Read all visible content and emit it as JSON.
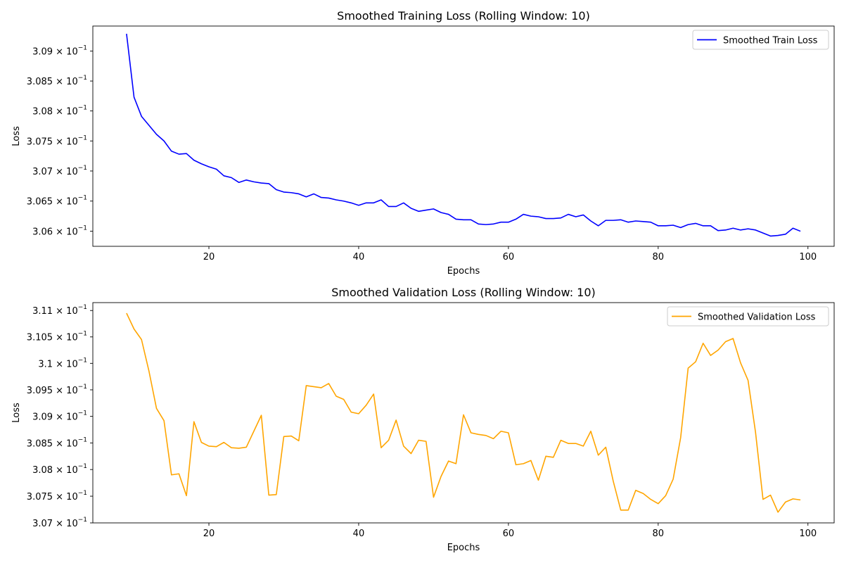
{
  "chart_data": [
    {
      "type": "line",
      "title": "Smoothed Training Loss (Rolling Window: 10)",
      "xlabel": "Epochs",
      "ylabel": "Loss",
      "yscale": "log",
      "xlim": [
        4.5,
        103.5
      ],
      "ylim": [
        0.30575,
        0.30942
      ],
      "x_ticks": [
        20,
        40,
        60,
        80,
        100
      ],
      "y_ticks": [
        0.306,
        0.3065,
        0.307,
        0.3075,
        0.308,
        0.3085,
        0.309
      ],
      "y_tick_mantissas": [
        "3.06",
        "3.065",
        "3.07",
        "3.075",
        "3.08",
        "3.085",
        "3.09"
      ],
      "y_tick_exponent": "−1",
      "grid": false,
      "legend_position": "top-right",
      "series": [
        {
          "name": "Smoothed Train Loss",
          "color": "#0000ff",
          "x": [
            9,
            10,
            11,
            12,
            13,
            14,
            15,
            16,
            17,
            18,
            19,
            20,
            21,
            22,
            23,
            24,
            25,
            26,
            27,
            28,
            29,
            30,
            31,
            32,
            33,
            34,
            35,
            36,
            37,
            38,
            39,
            40,
            41,
            42,
            43,
            44,
            45,
            46,
            47,
            48,
            49,
            50,
            51,
            52,
            53,
            54,
            55,
            56,
            57,
            58,
            59,
            60,
            61,
            62,
            63,
            64,
            65,
            66,
            67,
            68,
            69,
            70,
            71,
            72,
            73,
            74,
            75,
            76,
            77,
            78,
            79,
            80,
            81,
            82,
            83,
            84,
            85,
            86,
            87,
            88,
            89,
            90,
            91,
            92,
            93,
            94,
            95,
            96,
            97,
            98,
            99
          ],
          "values": [
            0.30929,
            0.30823,
            0.30791,
            0.30776,
            0.30761,
            0.3075,
            0.30733,
            0.30728,
            0.30729,
            0.30718,
            0.30712,
            0.30707,
            0.30703,
            0.30692,
            0.30689,
            0.30681,
            0.30685,
            0.30682,
            0.3068,
            0.30679,
            0.30669,
            0.30665,
            0.30664,
            0.30662,
            0.30657,
            0.30662,
            0.30656,
            0.30655,
            0.30652,
            0.3065,
            0.30647,
            0.30643,
            0.30647,
            0.30647,
            0.30652,
            0.30641,
            0.30641,
            0.30647,
            0.30638,
            0.30633,
            0.30635,
            0.30637,
            0.30631,
            0.30628,
            0.3062,
            0.30619,
            0.30619,
            0.30612,
            0.30611,
            0.30612,
            0.30615,
            0.30615,
            0.3062,
            0.30628,
            0.30625,
            0.30624,
            0.30621,
            0.30621,
            0.30622,
            0.30628,
            0.30624,
            0.30627,
            0.30617,
            0.30609,
            0.30618,
            0.30618,
            0.30619,
            0.30615,
            0.30617,
            0.30616,
            0.30615,
            0.30609,
            0.30609,
            0.3061,
            0.30606,
            0.30611,
            0.30613,
            0.30609,
            0.30609,
            0.30601,
            0.30602,
            0.30605,
            0.30602,
            0.30604,
            0.30602,
            0.30597,
            0.30592,
            0.30593,
            0.30595,
            0.30605,
            0.306
          ]
        }
      ]
    },
    {
      "type": "line",
      "title": "Smoothed Validation Loss (Rolling Window: 10)",
      "xlabel": "Epochs",
      "ylabel": "Loss",
      "yscale": "log",
      "xlim": [
        4.5,
        103.5
      ],
      "ylim": [
        0.307,
        0.31115
      ],
      "x_ticks": [
        20,
        40,
        60,
        80,
        100
      ],
      "y_ticks": [
        0.307,
        0.3075,
        0.308,
        0.3085,
        0.309,
        0.3095,
        0.31,
        0.3105,
        0.311
      ],
      "y_tick_mantissas": [
        "3.07",
        "3.075",
        "3.08",
        "3.085",
        "3.09",
        "3.095",
        "3.1",
        "3.105",
        "3.11"
      ],
      "y_tick_exponent": "−1",
      "grid": false,
      "legend_position": "top-right",
      "series": [
        {
          "name": "Smoothed Validation Loss",
          "color": "#ffa500",
          "x": [
            9,
            10,
            11,
            12,
            13,
            14,
            15,
            16,
            17,
            18,
            19,
            20,
            21,
            22,
            23,
            24,
            25,
            26,
            27,
            28,
            29,
            30,
            31,
            32,
            33,
            34,
            35,
            36,
            37,
            38,
            39,
            40,
            41,
            42,
            43,
            44,
            45,
            46,
            47,
            48,
            49,
            50,
            51,
            52,
            53,
            54,
            55,
            56,
            57,
            58,
            59,
            60,
            61,
            62,
            63,
            64,
            65,
            66,
            67,
            68,
            69,
            70,
            71,
            72,
            73,
            74,
            75,
            76,
            77,
            78,
            79,
            80,
            81,
            82,
            83,
            84,
            85,
            86,
            87,
            88,
            89,
            90,
            91,
            92,
            93,
            94,
            95,
            96,
            97,
            98,
            99
          ],
          "values": [
            0.31095,
            0.31065,
            0.31045,
            0.30985,
            0.30915,
            0.30892,
            0.3079,
            0.30792,
            0.30751,
            0.3089,
            0.30851,
            0.30844,
            0.30843,
            0.30851,
            0.30841,
            0.3084,
            0.30842,
            0.30872,
            0.30902,
            0.30752,
            0.30753,
            0.30862,
            0.30863,
            0.30854,
            0.30958,
            0.30956,
            0.30954,
            0.30962,
            0.30938,
            0.30932,
            0.30908,
            0.30905,
            0.30921,
            0.30942,
            0.30841,
            0.30855,
            0.30893,
            0.30844,
            0.3083,
            0.30855,
            0.30853,
            0.30748,
            0.30787,
            0.30816,
            0.30811,
            0.30903,
            0.30869,
            0.30866,
            0.30864,
            0.30858,
            0.30872,
            0.30869,
            0.30809,
            0.30811,
            0.30817,
            0.3078,
            0.30825,
            0.30823,
            0.30855,
            0.30849,
            0.30849,
            0.30844,
            0.30872,
            0.30827,
            0.30842,
            0.30778,
            0.30724,
            0.30724,
            0.30761,
            0.30755,
            0.30744,
            0.30736,
            0.30751,
            0.30782,
            0.3086,
            0.30991,
            0.31003,
            0.31038,
            0.31015,
            0.31025,
            0.31041,
            0.31047,
            0.31001,
            0.30968,
            0.3087,
            0.30744,
            0.30752,
            0.3072,
            0.30739,
            0.30745,
            0.30743
          ]
        }
      ]
    }
  ]
}
